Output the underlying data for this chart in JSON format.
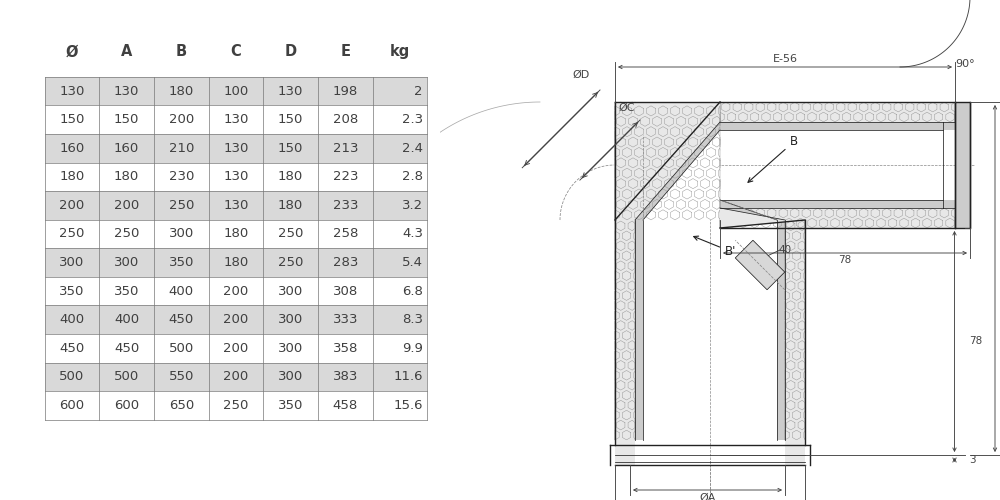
{
  "table_headers": [
    "Ø",
    "A",
    "B",
    "C",
    "D",
    "E",
    "kg"
  ],
  "table_rows": [
    [
      130,
      130,
      180,
      100,
      130,
      198,
      2
    ],
    [
      150,
      150,
      200,
      130,
      150,
      208,
      2.3
    ],
    [
      160,
      160,
      210,
      130,
      150,
      213,
      2.4
    ],
    [
      180,
      180,
      230,
      130,
      180,
      223,
      2.8
    ],
    [
      200,
      200,
      250,
      130,
      180,
      233,
      3.2
    ],
    [
      250,
      250,
      300,
      180,
      250,
      258,
      4.3
    ],
    [
      300,
      300,
      350,
      180,
      250,
      283,
      5.4
    ],
    [
      350,
      350,
      400,
      200,
      300,
      308,
      6.8
    ],
    [
      400,
      400,
      450,
      200,
      300,
      333,
      8.3
    ],
    [
      450,
      450,
      500,
      200,
      300,
      358,
      9.9
    ],
    [
      500,
      500,
      550,
      200,
      300,
      383,
      11.6
    ],
    [
      600,
      600,
      650,
      250,
      350,
      458,
      15.6
    ]
  ],
  "shaded_rows": [
    0,
    2,
    4,
    6,
    8,
    10
  ],
  "row_bg_shaded": "#d9d9d9",
  "text_color": "#404040",
  "bg_color": "#ffffff",
  "dim_color": "#444444",
  "lc": "#222222"
}
